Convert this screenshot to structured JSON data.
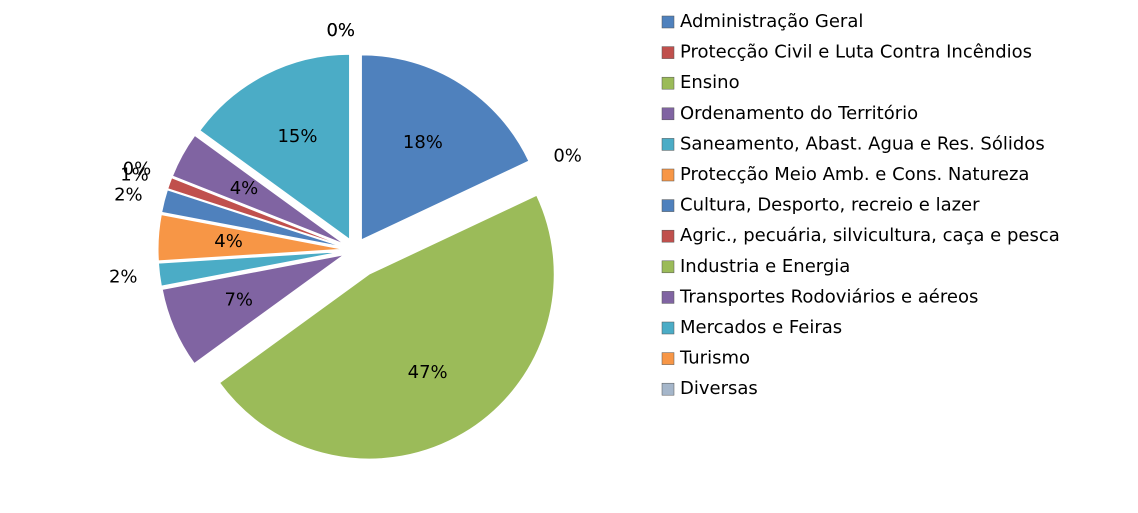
{
  "chart_data": {
    "type": "pie",
    "categories": [
      "Administração Geral",
      "Protecção Civil e Luta Contra Incêndios",
      "Ensino",
      "Ordenamento do Território",
      "Saneamento, Abast. Agua e Res. Sólidos",
      "Protecção Meio Amb. e Cons. Natureza",
      "Cultura, Desporto, recreio e lazer",
      "Agric., pecuária, silvicultura, caça e pesca",
      "Industria e Energia",
      "Transportes Rodoviários e aéreos",
      "Mercados e Feiras",
      "Turismo",
      "Diversas"
    ],
    "values": [
      18,
      0,
      47,
      7,
      2,
      4,
      2,
      1,
      0,
      4,
      15,
      0,
      0
    ],
    "value_labels": [
      "18%",
      "0%",
      "47%",
      "7%",
      "2%",
      "4%",
      "2%",
      "1%",
      "0%",
      "4%",
      "15%",
      "0%",
      "0%"
    ],
    "colors": [
      "#4f81bd",
      "#c0504d",
      "#9bbb59",
      "#8064a2",
      "#4bacc6",
      "#f79646",
      "#4f81bd",
      "#c0504d",
      "#9bbb59",
      "#8064a2",
      "#4bacc6",
      "#f79646",
      "#a5b6ca"
    ]
  }
}
